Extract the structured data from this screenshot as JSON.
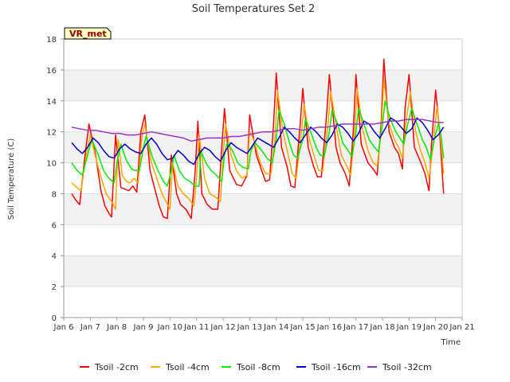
{
  "chart_data": {
    "type": "line",
    "title": "Soil Temperatures Set 2",
    "xlabel": "Time",
    "ylabel": "Soil Temperature (C)",
    "badge": "VR_met",
    "xlim": [
      6,
      21
    ],
    "ylim": [
      0,
      18
    ],
    "x_ticks": [
      {
        "value": 6,
        "label": "Jan 6"
      },
      {
        "value": 7,
        "label": "Jan 7"
      },
      {
        "value": 8,
        "label": "Jan 8"
      },
      {
        "value": 9,
        "label": "Jan 9"
      },
      {
        "value": 10,
        "label": "Jan 10"
      },
      {
        "value": 11,
        "label": "Jan 11"
      },
      {
        "value": 12,
        "label": "Jan 12"
      },
      {
        "value": 13,
        "label": "Jan 13"
      },
      {
        "value": 14,
        "label": "Jan 14"
      },
      {
        "value": 15,
        "label": "Jan 15"
      },
      {
        "value": 16,
        "label": "Jan 16"
      },
      {
        "value": 17,
        "label": "Jan 17"
      },
      {
        "value": 18,
        "label": "Jan 18"
      },
      {
        "value": 19,
        "label": "Jan 19"
      },
      {
        "value": 20,
        "label": "Jan 20"
      },
      {
        "value": 21,
        "label": "Jan 21"
      }
    ],
    "y_ticks": [
      0,
      2,
      4,
      6,
      8,
      10,
      12,
      14,
      16,
      18
    ],
    "grid": true,
    "legend_position": "bottom",
    "series": [
      {
        "name": "Tsoil -2cm",
        "color": "#ff0000",
        "x": [
          6.3,
          6.45,
          6.6,
          6.8,
          6.95,
          7.2,
          7.4,
          7.55,
          7.75,
          7.8,
          7.95,
          8.15,
          8.3,
          8.45,
          8.6,
          8.75,
          8.9,
          9.05,
          9.25,
          9.4,
          9.6,
          9.75,
          9.9,
          10.05,
          10.25,
          10.4,
          10.6,
          10.8,
          10.95,
          11.05,
          11.2,
          11.4,
          11.6,
          11.8,
          11.95,
          12.05,
          12.25,
          12.5,
          12.7,
          12.9,
          13.0,
          13.25,
          13.45,
          13.6,
          13.75,
          13.9,
          14.0,
          14.2,
          14.4,
          14.55,
          14.7,
          14.9,
          15.0,
          15.2,
          15.4,
          15.55,
          15.7,
          15.9,
          16.0,
          16.25,
          16.4,
          16.6,
          16.75,
          16.9,
          17.0,
          17.2,
          17.45,
          17.65,
          17.8,
          17.95,
          18.05,
          18.25,
          18.45,
          18.6,
          18.75,
          18.85,
          19.0,
          19.2,
          19.45,
          19.6,
          19.75,
          19.85,
          20.0,
          20.15,
          20.3
        ],
        "values": [
          8.0,
          7.6,
          7.3,
          10.5,
          12.5,
          10.5,
          8.2,
          7.2,
          6.6,
          6.5,
          11.8,
          8.4,
          8.3,
          8.2,
          8.5,
          8.1,
          12.0,
          13.1,
          9.5,
          8.5,
          7.2,
          6.5,
          6.4,
          10.5,
          8.0,
          7.3,
          7.0,
          6.4,
          9.5,
          12.7,
          8.0,
          7.3,
          7.0,
          7.0,
          11.0,
          13.5,
          9.5,
          8.6,
          8.5,
          9.2,
          13.1,
          10.5,
          9.5,
          8.8,
          8.9,
          12.5,
          15.8,
          11.0,
          9.8,
          8.5,
          8.4,
          12.5,
          14.8,
          11.0,
          9.8,
          9.1,
          9.1,
          13.2,
          15.7,
          11.0,
          10.0,
          9.3,
          8.5,
          12.0,
          15.7,
          11.2,
          10.0,
          9.6,
          9.2,
          12.5,
          16.7,
          12.0,
          11.0,
          10.6,
          9.6,
          13.5,
          15.7,
          11.0,
          10.0,
          9.3,
          8.2,
          11.3,
          14.7,
          12.0,
          8.0
        ]
      },
      {
        "name": "Tsoil -4cm",
        "color": "#ffa500",
        "x": [
          6.3,
          6.5,
          6.65,
          6.85,
          7.0,
          7.25,
          7.45,
          7.6,
          7.8,
          7.95,
          8.05,
          8.2,
          8.35,
          8.5,
          8.65,
          8.8,
          8.95,
          9.05,
          9.3,
          9.5,
          9.7,
          9.85,
          10.0,
          10.1,
          10.3,
          10.5,
          10.7,
          10.9,
          11.0,
          11.1,
          11.3,
          11.5,
          11.7,
          11.9,
          12.0,
          12.1,
          12.3,
          12.5,
          12.7,
          12.9,
          13.0,
          13.15,
          13.4,
          13.6,
          13.8,
          13.95,
          14.05,
          14.25,
          14.45,
          14.6,
          14.75,
          14.95,
          15.05,
          15.25,
          15.45,
          15.6,
          15.75,
          15.95,
          16.05,
          16.3,
          16.45,
          16.65,
          16.8,
          16.95,
          17.05,
          17.25,
          17.45,
          17.65,
          17.8,
          17.95,
          18.05,
          18.25,
          18.45,
          18.6,
          18.75,
          18.9,
          19.05,
          19.25,
          19.45,
          19.6,
          19.75,
          19.9,
          20.05,
          20.15,
          20.3
        ],
        "values": [
          8.7,
          8.4,
          8.2,
          10.5,
          11.8,
          10.0,
          8.8,
          8.0,
          7.5,
          7.0,
          11.5,
          9.2,
          8.8,
          8.7,
          9.0,
          8.7,
          11.8,
          12.5,
          10.0,
          9.0,
          8.0,
          7.5,
          7.0,
          10.0,
          8.5,
          8.0,
          7.7,
          7.2,
          9.0,
          11.8,
          9.0,
          8.0,
          7.8,
          7.5,
          10.5,
          12.5,
          10.5,
          9.5,
          9.0,
          9.2,
          12.0,
          11.5,
          10.0,
          9.3,
          9.3,
          11.5,
          14.7,
          12.0,
          10.5,
          9.3,
          9.0,
          12.0,
          13.8,
          11.5,
          10.3,
          9.5,
          9.5,
          12.5,
          14.6,
          12.0,
          10.5,
          9.8,
          9.2,
          11.8,
          14.8,
          12.2,
          10.8,
          10.0,
          9.8,
          12.0,
          15.4,
          12.5,
          11.5,
          11.0,
          10.3,
          12.8,
          14.6,
          12.0,
          10.7,
          10.0,
          9.0,
          11.0,
          13.6,
          12.3,
          9.3
        ]
      },
      {
        "name": "Tsoil -8cm",
        "color": "#00ee00",
        "x": [
          6.3,
          6.5,
          6.7,
          6.9,
          7.05,
          7.3,
          7.5,
          7.7,
          7.9,
          8.0,
          8.15,
          8.35,
          8.55,
          8.7,
          8.85,
          9.0,
          9.1,
          9.35,
          9.55,
          9.75,
          9.9,
          10.05,
          10.15,
          10.35,
          10.55,
          10.75,
          10.95,
          11.1,
          11.15,
          11.35,
          11.55,
          11.75,
          11.95,
          12.05,
          12.15,
          12.35,
          12.55,
          12.75,
          12.95,
          13.05,
          13.2,
          13.45,
          13.65,
          13.85,
          14.0,
          14.1,
          14.3,
          14.5,
          14.65,
          14.8,
          15.0,
          15.1,
          15.3,
          15.5,
          15.65,
          15.8,
          16.0,
          16.1,
          16.35,
          16.5,
          16.7,
          16.85,
          17.0,
          17.1,
          17.3,
          17.5,
          17.7,
          17.85,
          18.0,
          18.1,
          18.3,
          18.5,
          18.65,
          18.8,
          18.95,
          19.1,
          19.3,
          19.5,
          19.65,
          19.8,
          19.95,
          20.1,
          20.2,
          20.3
        ],
        "values": [
          10.0,
          9.5,
          9.2,
          10.5,
          11.5,
          10.5,
          9.5,
          9.0,
          8.7,
          10.0,
          11.2,
          10.2,
          9.6,
          9.5,
          9.5,
          11.0,
          11.7,
          10.3,
          9.5,
          8.8,
          8.5,
          9.5,
          10.5,
          9.5,
          9.0,
          8.8,
          8.5,
          8.5,
          10.8,
          10.0,
          9.5,
          9.2,
          8.8,
          10.5,
          11.3,
          10.8,
          10.0,
          9.7,
          9.6,
          10.8,
          11.3,
          10.8,
          10.3,
          10.0,
          11.5,
          13.4,
          12.5,
          11.3,
          10.5,
          10.3,
          11.5,
          12.8,
          12.0,
          11.0,
          10.5,
          10.4,
          12.0,
          13.4,
          12.3,
          11.3,
          10.8,
          10.4,
          12.0,
          13.5,
          12.5,
          11.5,
          11.0,
          10.7,
          12.5,
          14.0,
          12.8,
          12.0,
          11.6,
          11.2,
          12.5,
          13.5,
          12.5,
          11.5,
          11.0,
          10.2,
          11.5,
          12.5,
          11.8,
          10.3
        ]
      },
      {
        "name": "Tsoil -16cm",
        "color": "#0000cc",
        "x": [
          6.3,
          6.5,
          6.7,
          6.9,
          7.1,
          7.3,
          7.5,
          7.7,
          7.9,
          8.1,
          8.3,
          8.5,
          8.7,
          8.9,
          9.1,
          9.3,
          9.5,
          9.7,
          9.9,
          10.1,
          10.3,
          10.5,
          10.7,
          10.9,
          11.1,
          11.3,
          11.5,
          11.7,
          11.9,
          12.1,
          12.3,
          12.5,
          12.7,
          12.9,
          13.1,
          13.3,
          13.5,
          13.7,
          13.9,
          14.1,
          14.3,
          14.5,
          14.7,
          14.9,
          15.1,
          15.3,
          15.5,
          15.7,
          15.9,
          16.1,
          16.3,
          16.5,
          16.7,
          16.9,
          17.1,
          17.3,
          17.5,
          17.7,
          17.9,
          18.1,
          18.3,
          18.5,
          18.7,
          18.9,
          19.1,
          19.3,
          19.5,
          19.7,
          19.9,
          20.1,
          20.3
        ],
        "values": [
          11.3,
          10.9,
          10.6,
          11.0,
          11.6,
          11.3,
          10.8,
          10.4,
          10.3,
          10.9,
          11.2,
          10.9,
          10.7,
          10.6,
          11.2,
          11.6,
          11.2,
          10.6,
          10.2,
          10.3,
          10.8,
          10.5,
          10.1,
          9.9,
          10.6,
          11.0,
          10.8,
          10.4,
          10.1,
          10.8,
          11.3,
          11.0,
          10.8,
          10.6,
          11.1,
          11.6,
          11.4,
          11.2,
          11.0,
          11.6,
          12.3,
          12.0,
          11.6,
          11.3,
          11.8,
          12.3,
          12.0,
          11.6,
          11.3,
          11.8,
          12.5,
          12.3,
          11.9,
          11.4,
          11.9,
          12.7,
          12.5,
          12.0,
          11.6,
          12.2,
          12.9,
          12.7,
          12.3,
          11.9,
          12.2,
          12.9,
          12.6,
          12.1,
          11.5,
          11.8,
          12.3
        ]
      },
      {
        "name": "Tsoil -32cm",
        "color": "#9933cc",
        "x": [
          6.3,
          6.6,
          6.9,
          7.2,
          7.5,
          7.8,
          8.1,
          8.4,
          8.7,
          9.0,
          9.3,
          9.6,
          9.9,
          10.2,
          10.5,
          10.8,
          11.1,
          11.4,
          11.7,
          12.0,
          12.3,
          12.6,
          12.9,
          13.2,
          13.5,
          13.8,
          14.1,
          14.4,
          14.7,
          15.0,
          15.3,
          15.6,
          15.9,
          16.2,
          16.5,
          16.8,
          17.1,
          17.4,
          17.7,
          18.0,
          18.3,
          18.6,
          18.9,
          19.2,
          19.5,
          19.8,
          20.1,
          20.3
        ],
        "values": [
          12.3,
          12.2,
          12.1,
          12.1,
          12.0,
          11.9,
          11.9,
          11.8,
          11.8,
          11.9,
          12.0,
          11.9,
          11.8,
          11.7,
          11.6,
          11.4,
          11.5,
          11.6,
          11.6,
          11.6,
          11.7,
          11.7,
          11.8,
          11.9,
          12.0,
          12.0,
          12.1,
          12.2,
          12.2,
          12.1,
          12.2,
          12.3,
          12.3,
          12.4,
          12.5,
          12.5,
          12.5,
          12.5,
          12.5,
          12.6,
          12.7,
          12.7,
          12.8,
          12.8,
          12.8,
          12.7,
          12.6,
          12.6
        ]
      }
    ]
  }
}
